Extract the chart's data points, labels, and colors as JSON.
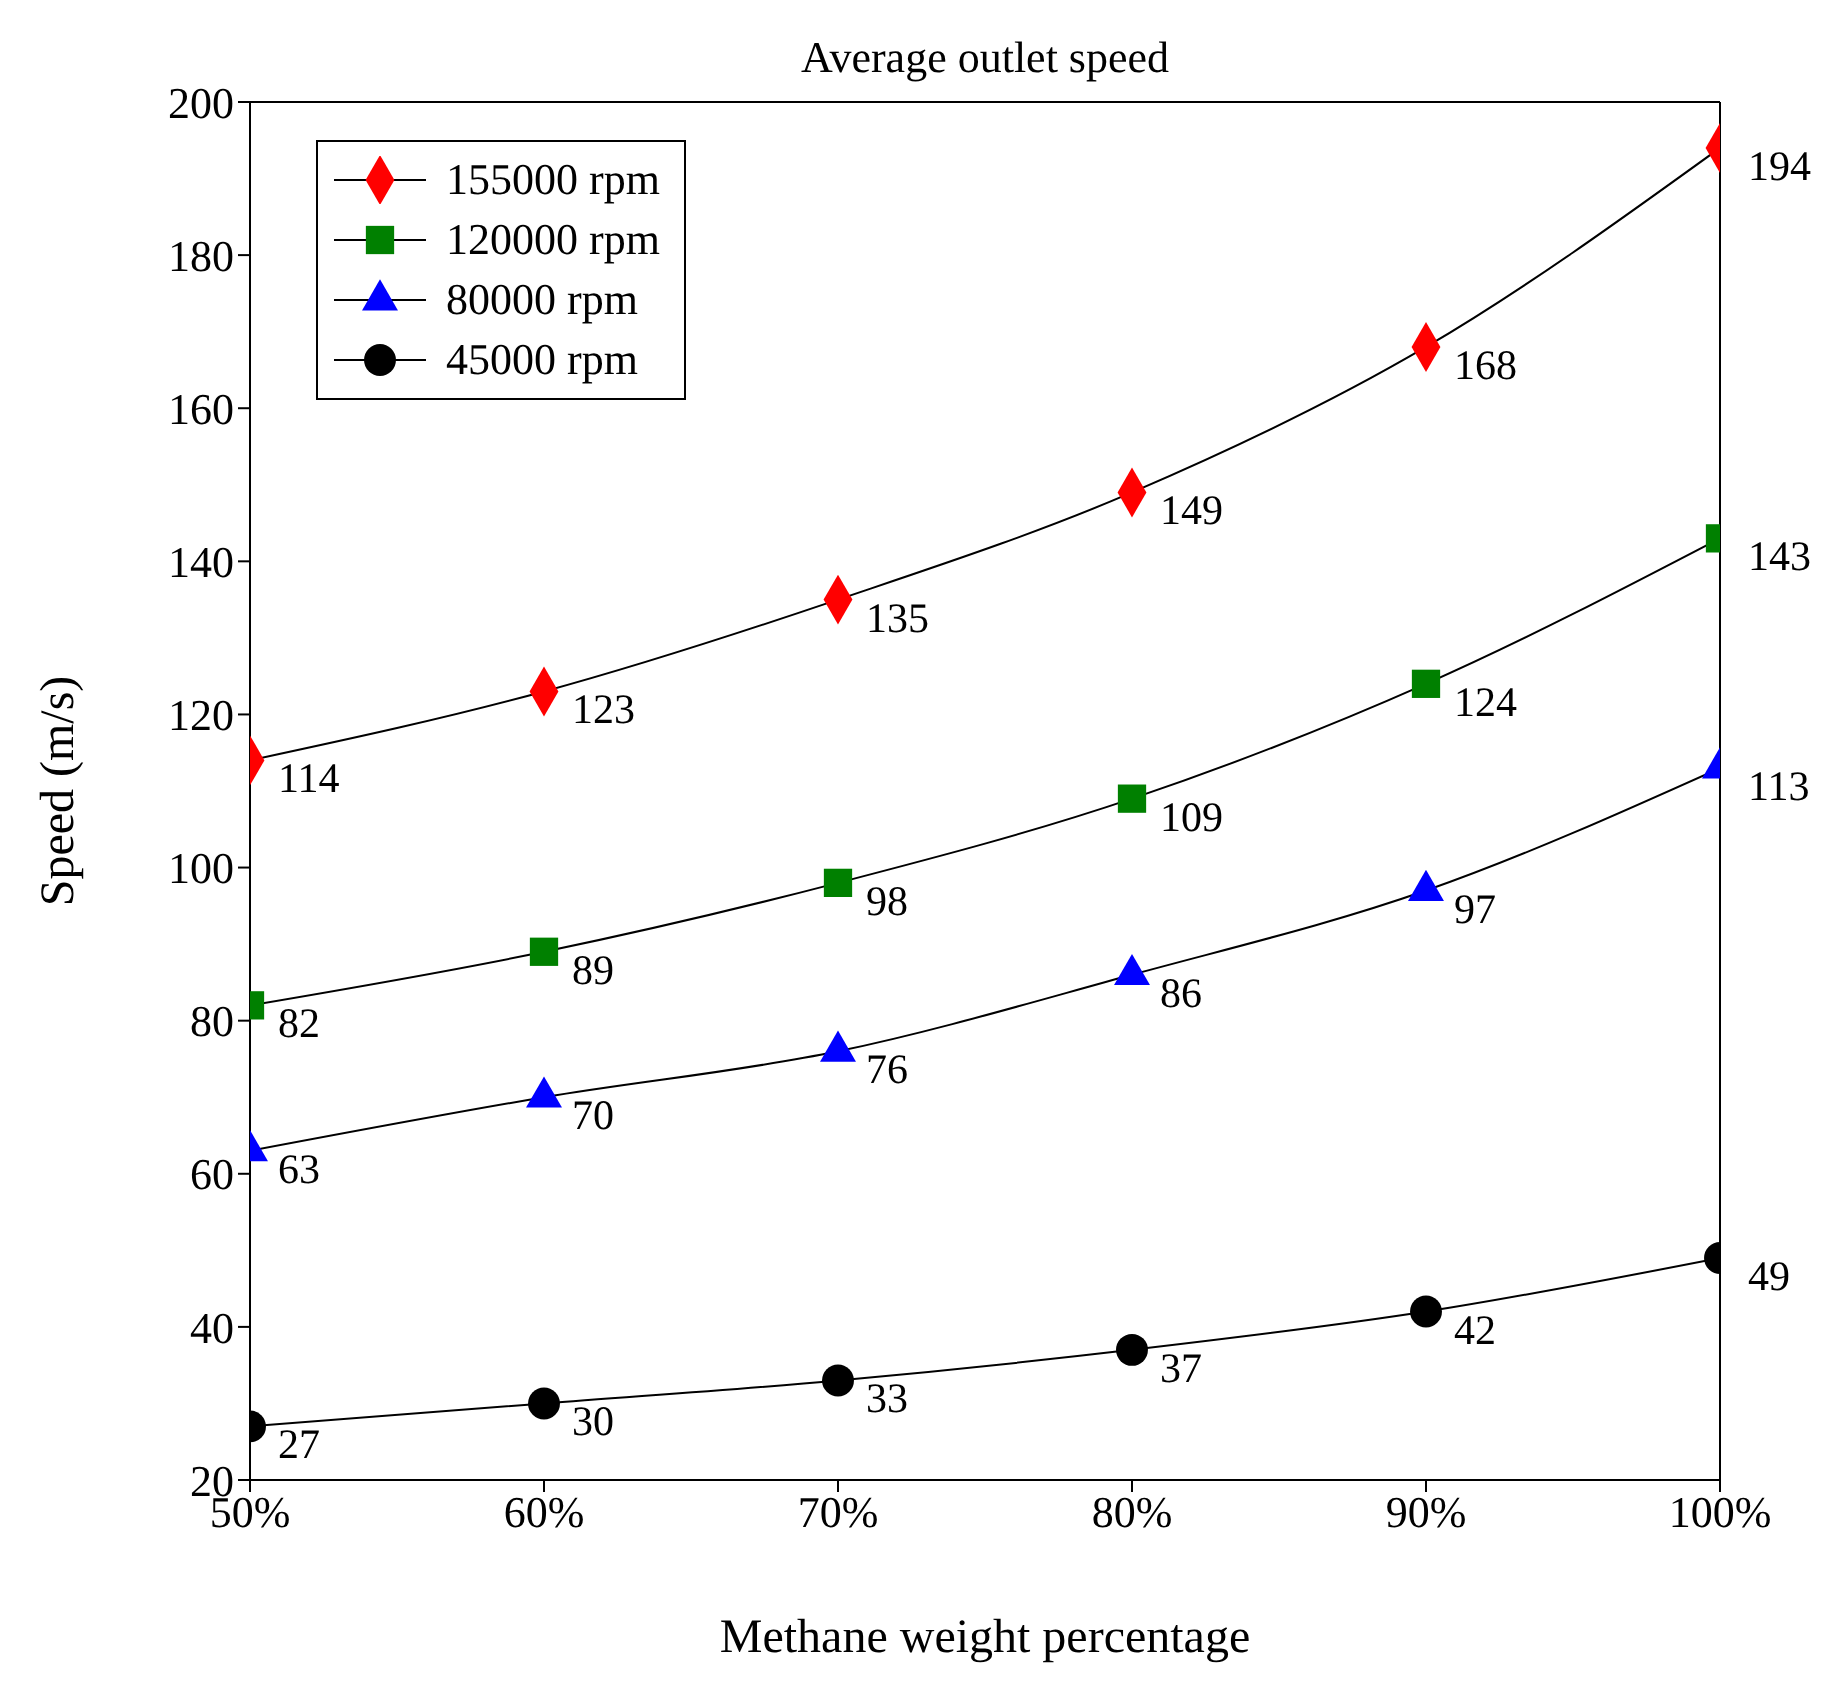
{
  "chart_data": {
    "type": "line",
    "title": "Average outlet speed",
    "xlabel": "Methane weight percentage",
    "ylabel": "Speed (m/s)",
    "categories": [
      "50%",
      "60%",
      "70%",
      "80%",
      "90%",
      "100%"
    ],
    "series": [
      {
        "name": "155000 rpm",
        "color": "#ff0000",
        "marker": "diamond",
        "values": [
          114,
          123,
          135,
          149,
          168,
          194
        ]
      },
      {
        "name": "120000 rpm",
        "color": "#008000",
        "marker": "square",
        "values": [
          82,
          89,
          98,
          109,
          124,
          143
        ]
      },
      {
        "name": "80000 rpm",
        "color": "#0000ff",
        "marker": "triangle",
        "values": [
          63,
          70,
          76,
          86,
          97,
          113
        ]
      },
      {
        "name": "45000 rpm",
        "color": "#000000",
        "marker": "circle",
        "values": [
          27,
          30,
          33,
          37,
          42,
          49
        ]
      }
    ],
    "ylim": [
      20,
      200
    ],
    "yticks": [
      20,
      40,
      60,
      80,
      100,
      120,
      140,
      160,
      180,
      200
    ],
    "grid": false,
    "legend": "top left",
    "data_labels": true,
    "line_style": "solid"
  }
}
